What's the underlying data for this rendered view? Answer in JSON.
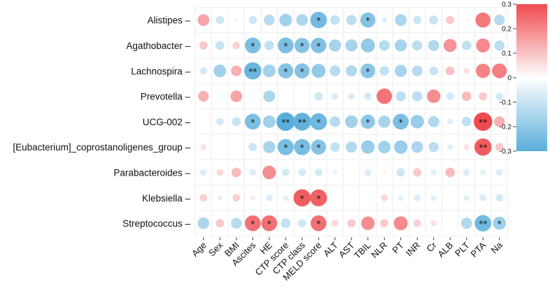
{
  "chart_data": {
    "type": "heatmap",
    "subtype": "correlation-dot-matrix",
    "title": "",
    "rows": [
      "Alistipes",
      "Agathobacter",
      "Lachnospira",
      "Prevotella",
      "UCG-002",
      "[Eubacterium]_coprostanoligenes_group",
      "Parabacteroides",
      "Klebsiella",
      "Streptococcus"
    ],
    "columns": [
      "Age",
      "Sex",
      "BMI",
      "Ascites",
      "HE",
      "CTP score",
      "CTP class",
      "MELD score",
      "ALT",
      "AST",
      "TBIL",
      "NLR",
      "PT",
      "INR",
      "Cr",
      "ALB",
      "PLT",
      "PTA",
      "Na"
    ],
    "values": [
      [
        0.12,
        -0.06,
        0.01,
        -0.06,
        -0.1,
        -0.14,
        -0.12,
        -0.24,
        -0.08,
        -0.09,
        -0.2,
        -0.03,
        -0.12,
        -0.06,
        -0.07,
        0.06,
        0.01,
        0.2,
        -0.1
      ],
      [
        0.06,
        -0.07,
        0.05,
        -0.22,
        -0.08,
        -0.22,
        -0.2,
        -0.21,
        -0.13,
        -0.13,
        -0.17,
        -0.1,
        -0.13,
        -0.09,
        -0.11,
        0.15,
        -0.08,
        0.17,
        -0.09
      ],
      [
        -0.05,
        -0.14,
        0.1,
        -0.26,
        -0.14,
        -0.2,
        -0.2,
        -0.17,
        -0.1,
        -0.11,
        -0.19,
        -0.08,
        -0.13,
        -0.1,
        -0.07,
        0.07,
        0.03,
        0.18,
        0.19
      ],
      [
        0.1,
        0.0,
        0.12,
        0.0,
        -0.12,
        0.0,
        0.0,
        -0.06,
        -0.04,
        -0.04,
        -0.05,
        0.21,
        -0.09,
        -0.09,
        0.16,
        -0.05,
        0.08,
        0.06,
        -0.05
      ],
      [
        0.0,
        -0.05,
        -0.07,
        -0.22,
        -0.14,
        -0.3,
        -0.28,
        -0.25,
        -0.1,
        -0.14,
        -0.18,
        -0.13,
        -0.22,
        -0.16,
        -0.11,
        -0.03,
        -0.08,
        0.3,
        0.1
      ],
      [
        0.03,
        0.0,
        0.0,
        -0.06,
        -0.13,
        -0.23,
        -0.23,
        -0.2,
        -0.08,
        -0.11,
        -0.16,
        -0.14,
        -0.16,
        -0.12,
        -0.09,
        -0.03,
        0.03,
        0.26,
        0.06
      ],
      [
        -0.04,
        0.04,
        0.08,
        -0.04,
        0.16,
        -0.05,
        -0.05,
        -0.05,
        -0.02,
        0.0,
        -0.04,
        0.01,
        -0.06,
        0.06,
        -0.03,
        0.08,
        -0.04,
        -0.03,
        -0.04
      ],
      [
        0.05,
        0.02,
        0.05,
        0.02,
        -0.04,
        -0.03,
        0.26,
        0.25,
        0.0,
        0.0,
        0.0,
        0.04,
        -0.03,
        -0.04,
        -0.03,
        0.0,
        -0.03,
        -0.04,
        -0.05
      ],
      [
        -0.12,
        0.06,
        -0.1,
        0.22,
        0.22,
        -0.08,
        -0.06,
        0.22,
        0.04,
        0.06,
        0.16,
        0.06,
        0.17,
        0.05,
        0.03,
        0.0,
        -0.11,
        -0.24,
        -0.15
      ]
    ],
    "significance": [
      [
        "",
        "",
        "",
        "",
        "",
        "",
        "",
        "*",
        "",
        "",
        "*",
        "",
        "",
        "",
        "",
        "",
        "",
        "",
        ""
      ],
      [
        "",
        "",
        "",
        "*",
        "",
        "*",
        "*",
        "*",
        "",
        "",
        "",
        "",
        "",
        "",
        "",
        "",
        "",
        "",
        ""
      ],
      [
        "",
        "",
        "",
        "**",
        "",
        "*",
        "*",
        "",
        "",
        "",
        "*",
        "",
        "",
        "",
        "",
        "",
        "",
        "",
        ""
      ],
      [
        "",
        "",
        "",
        "",
        "",
        "",
        "",
        "",
        "",
        "",
        "",
        "",
        "",
        "",
        "",
        "",
        "",
        "",
        ""
      ],
      [
        "",
        "",
        "",
        "*",
        "",
        "**",
        "**",
        "*",
        "",
        "",
        "*",
        "",
        "*",
        "",
        "",
        "",
        "",
        "**",
        ""
      ],
      [
        "",
        "",
        "",
        "",
        "",
        "*",
        "*",
        "*",
        "",
        "",
        "",
        "",
        "",
        "",
        "",
        "",
        "",
        "**",
        ""
      ],
      [
        "",
        "",
        "",
        "",
        "",
        "",
        "",
        "",
        "",
        "",
        "",
        "",
        "",
        "",
        "",
        "",
        "",
        "",
        ""
      ],
      [
        "",
        "",
        "",
        "",
        "",
        "",
        "*",
        "*",
        "",
        "",
        "",
        "",
        "",
        "",
        "",
        "",
        "",
        "",
        ""
      ],
      [
        "",
        "",
        "",
        "*",
        "*",
        "",
        "",
        "*",
        "",
        "",
        "",
        "",
        "",
        "",
        "",
        "",
        "",
        "**",
        "*"
      ]
    ],
    "color_scale": {
      "min": -0.3,
      "max": 0.3,
      "ticks": [
        "0.3",
        "0.2",
        "0.1",
        "0",
        "-0.1",
        "-0.2",
        "-0.3"
      ],
      "tick_values": [
        0.3,
        0.2,
        0.1,
        0,
        -0.1,
        -0.2,
        -0.3
      ],
      "negative_color": "#5aaedb",
      "mid_color": "#ffffff",
      "positive_color": "#ef4a4f"
    },
    "legend_position": "right"
  }
}
